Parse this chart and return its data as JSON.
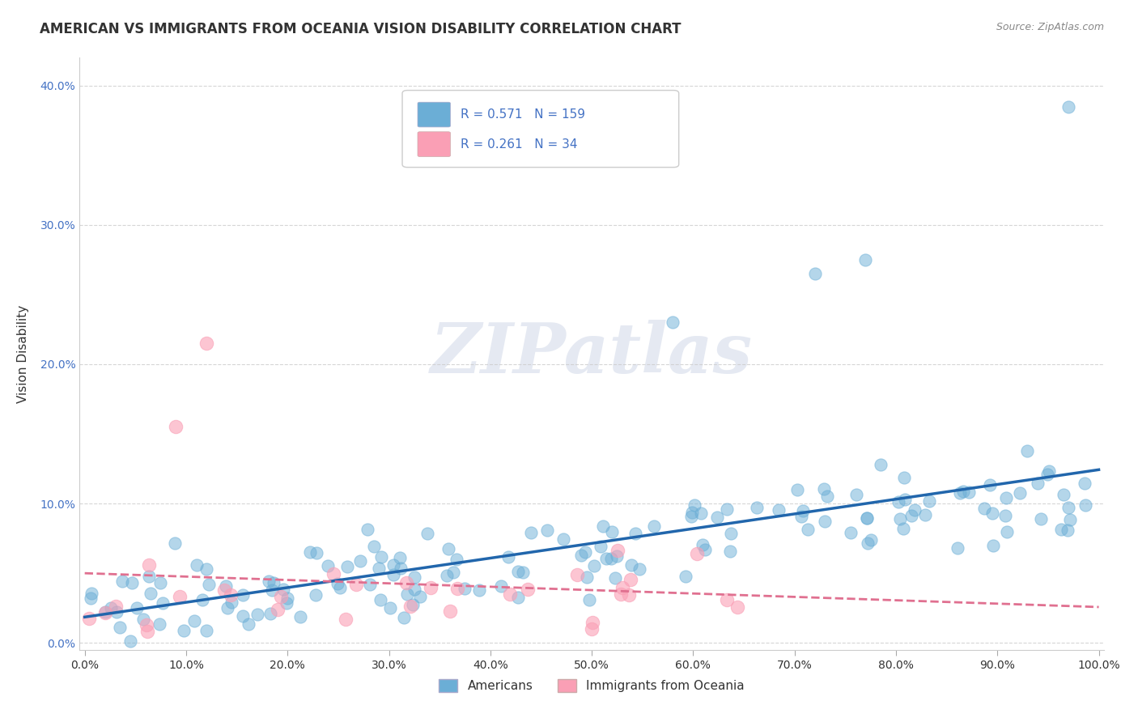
{
  "title": "AMERICAN VS IMMIGRANTS FROM OCEANIA VISION DISABILITY CORRELATION CHART",
  "source": "Source: ZipAtlas.com",
  "xlabel": "",
  "ylabel": "Vision Disability",
  "xlim": [
    0,
    1.0
  ],
  "ylim": [
    -0.005,
    0.42
  ],
  "xticks": [
    0.0,
    0.1,
    0.2,
    0.3,
    0.4,
    0.5,
    0.6,
    0.7,
    0.8,
    0.9,
    1.0
  ],
  "yticks": [
    0.0,
    0.1,
    0.2,
    0.3,
    0.4
  ],
  "blue_color": "#6baed6",
  "blue_line_color": "#2166ac",
  "pink_color": "#fa9fb5",
  "pink_line_color": "#e07090",
  "R_blue": 0.571,
  "N_blue": 159,
  "R_pink": 0.261,
  "N_pink": 34,
  "watermark": "ZIPatlas",
  "legend_labels": [
    "Americans",
    "Immigrants from Oceania"
  ],
  "background_color": "#ffffff",
  "grid_color": "#cccccc",
  "seed_blue": 42,
  "seed_pink": 99
}
